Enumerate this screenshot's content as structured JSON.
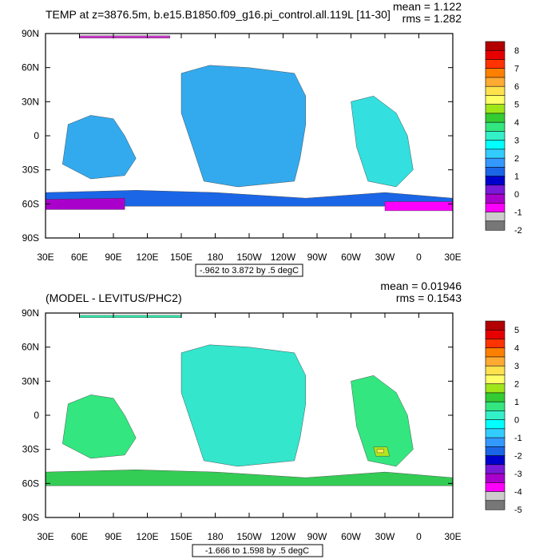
{
  "chart_data": [
    {
      "type": "heatmap",
      "title": "TEMP at z=3876.5m, b.e15.B1850.f09_g16.pi_control.all.119L [11-30]",
      "stats": {
        "mean": "mean = 1.122",
        "rms": "rms = 1.282"
      },
      "range_label": "-.962 to 3.872 by .5 degC",
      "x_ticks": [
        "30E",
        "60E",
        "90E",
        "120E",
        "150E",
        "180",
        "150W",
        "120W",
        "90W",
        "60W",
        "30W",
        "0",
        "30E"
      ],
      "y_ticks": [
        "90N",
        "60N",
        "30N",
        "0",
        "30S",
        "60S",
        "90S"
      ],
      "xlim": [
        30,
        390
      ],
      "ylim": [
        -90,
        90
      ],
      "colorbar": {
        "levels": [
          "8",
          "7",
          "6",
          "5",
          "4",
          "3",
          "2",
          "1",
          "0",
          "-1",
          "-2"
        ],
        "colors": [
          "#b30000",
          "#e60000",
          "#ff3300",
          "#ff8000",
          "#ffaa33",
          "#ffe14d",
          "#ffff66",
          "#9ee61a",
          "#33cc33",
          "#33e680",
          "#33f0c8",
          "#00ffff",
          "#33ccff",
          "#3399ff",
          "#1a66e6",
          "#0000cc",
          "#7a1ad9",
          "#aa00cc",
          "#ff00ff",
          "#cccccc",
          "#777777"
        ]
      },
      "regions": [
        {
          "name": "arctic-strip",
          "color": "#cc33cc",
          "lonlat": [
            [
              60,
              88
            ],
            [
              140,
              88
            ],
            [
              140,
              86
            ],
            [
              60,
              86
            ]
          ]
        },
        {
          "name": "pacific-basin",
          "color": "#33aaee",
          "lonlat": [
            [
              150,
              55
            ],
            [
              175,
              62
            ],
            [
              210,
              60
            ],
            [
              250,
              55
            ],
            [
              260,
              35
            ],
            [
              260,
              10
            ],
            [
              255,
              -20
            ],
            [
              250,
              -40
            ],
            [
              200,
              -45
            ],
            [
              170,
              -40
            ],
            [
              160,
              -10
            ],
            [
              150,
              20
            ]
          ]
        },
        {
          "name": "north-atlantic",
          "color": "#33dfdf",
          "lonlat": [
            [
              300,
              30
            ],
            [
              320,
              35
            ],
            [
              340,
              20
            ],
            [
              350,
              0
            ],
            [
              355,
              -30
            ],
            [
              340,
              -45
            ],
            [
              315,
              -40
            ],
            [
              305,
              -10
            ]
          ]
        },
        {
          "name": "indian-ocean",
          "color": "#33aaee",
          "lonlat": [
            [
              50,
              10
            ],
            [
              70,
              18
            ],
            [
              90,
              15
            ],
            [
              100,
              0
            ],
            [
              110,
              -20
            ],
            [
              100,
              -35
            ],
            [
              70,
              -38
            ],
            [
              45,
              -25
            ]
          ]
        },
        {
          "name": "southern-ocean-deep",
          "color": "#1a66e6",
          "lonlat": [
            [
              30,
              -50
            ],
            [
              110,
              -48
            ],
            [
              180,
              -50
            ],
            [
              260,
              -55
            ],
            [
              330,
              -50
            ],
            [
              390,
              -55
            ],
            [
              390,
              -62
            ],
            [
              30,
              -62
            ]
          ]
        },
        {
          "name": "antarctic-bottom",
          "color": "#aa00cc",
          "lonlat": [
            [
              30,
              -56
            ],
            [
              100,
              -55
            ],
            [
              100,
              -65
            ],
            [
              30,
              -65
            ]
          ]
        },
        {
          "name": "weddell",
          "color": "#ff00ff",
          "lonlat": [
            [
              330,
              -58
            ],
            [
              390,
              -58
            ],
            [
              390,
              -66
            ],
            [
              330,
              -66
            ]
          ]
        }
      ]
    },
    {
      "type": "heatmap",
      "title": "(MODEL - LEVITUS/PHC2)",
      "stats": {
        "mean": "mean = 0.01946",
        "rms": "rms = 0.1543"
      },
      "range_label": "-1.666 to 1.598 by .5 degC",
      "x_ticks": [
        "30E",
        "60E",
        "90E",
        "120E",
        "150E",
        "180",
        "150W",
        "120W",
        "90W",
        "60W",
        "30W",
        "0",
        "30E"
      ],
      "y_ticks": [
        "90N",
        "60N",
        "30N",
        "0",
        "30S",
        "60S",
        "90S"
      ],
      "xlim": [
        30,
        390
      ],
      "ylim": [
        -90,
        90
      ],
      "colorbar": {
        "levels": [
          "5",
          "4",
          "3",
          "2",
          "1",
          "0",
          "-1",
          "-2",
          "-3",
          "-4",
          "-5"
        ],
        "colors": [
          "#b30000",
          "#e60000",
          "#ff3300",
          "#ff8000",
          "#ffaa33",
          "#ffe14d",
          "#ffff66",
          "#9ee61a",
          "#33cc33",
          "#33e680",
          "#33f0c8",
          "#00ffff",
          "#33ccff",
          "#3399ff",
          "#1a66e6",
          "#0000cc",
          "#7a1ad9",
          "#aa00cc",
          "#ff00ff",
          "#cccccc",
          "#777777"
        ]
      },
      "regions": [
        {
          "name": "arctic-strip",
          "color": "#33e6aa",
          "lonlat": [
            [
              60,
              88
            ],
            [
              150,
              88
            ],
            [
              150,
              86
            ],
            [
              60,
              86
            ]
          ]
        },
        {
          "name": "pacific-basin",
          "color": "#33e6cc",
          "lonlat": [
            [
              150,
              55
            ],
            [
              175,
              62
            ],
            [
              210,
              60
            ],
            [
              250,
              55
            ],
            [
              260,
              35
            ],
            [
              260,
              10
            ],
            [
              255,
              -20
            ],
            [
              250,
              -40
            ],
            [
              200,
              -45
            ],
            [
              170,
              -40
            ],
            [
              160,
              -10
            ],
            [
              150,
              20
            ]
          ]
        },
        {
          "name": "north-atlantic",
          "color": "#33e680",
          "lonlat": [
            [
              300,
              30
            ],
            [
              320,
              35
            ],
            [
              340,
              20
            ],
            [
              350,
              0
            ],
            [
              355,
              -30
            ],
            [
              340,
              -45
            ],
            [
              315,
              -40
            ],
            [
              305,
              -10
            ]
          ]
        },
        {
          "name": "indian-ocean",
          "color": "#33e680",
          "lonlat": [
            [
              50,
              10
            ],
            [
              70,
              18
            ],
            [
              90,
              15
            ],
            [
              100,
              0
            ],
            [
              110,
              -20
            ],
            [
              100,
              -35
            ],
            [
              70,
              -38
            ],
            [
              45,
              -25
            ]
          ]
        },
        {
          "name": "southern-ocean",
          "color": "#33cc55",
          "lonlat": [
            [
              30,
              -50
            ],
            [
              110,
              -48
            ],
            [
              180,
              -50
            ],
            [
              260,
              -55
            ],
            [
              330,
              -50
            ],
            [
              390,
              -55
            ],
            [
              390,
              -62
            ],
            [
              30,
              -62
            ]
          ]
        },
        {
          "name": "south-atlantic-warm",
          "color": "#b3e61a",
          "lonlat": [
            [
              320,
              -28
            ],
            [
              332,
              -28
            ],
            [
              334,
              -36
            ],
            [
              322,
              -36
            ]
          ]
        },
        {
          "name": "south-atlantic-hot",
          "color": "#ffee55",
          "lonlat": [
            [
              323,
              -30
            ],
            [
              329,
              -30
            ],
            [
              329,
              -33
            ],
            [
              323,
              -33
            ]
          ]
        }
      ]
    }
  ]
}
